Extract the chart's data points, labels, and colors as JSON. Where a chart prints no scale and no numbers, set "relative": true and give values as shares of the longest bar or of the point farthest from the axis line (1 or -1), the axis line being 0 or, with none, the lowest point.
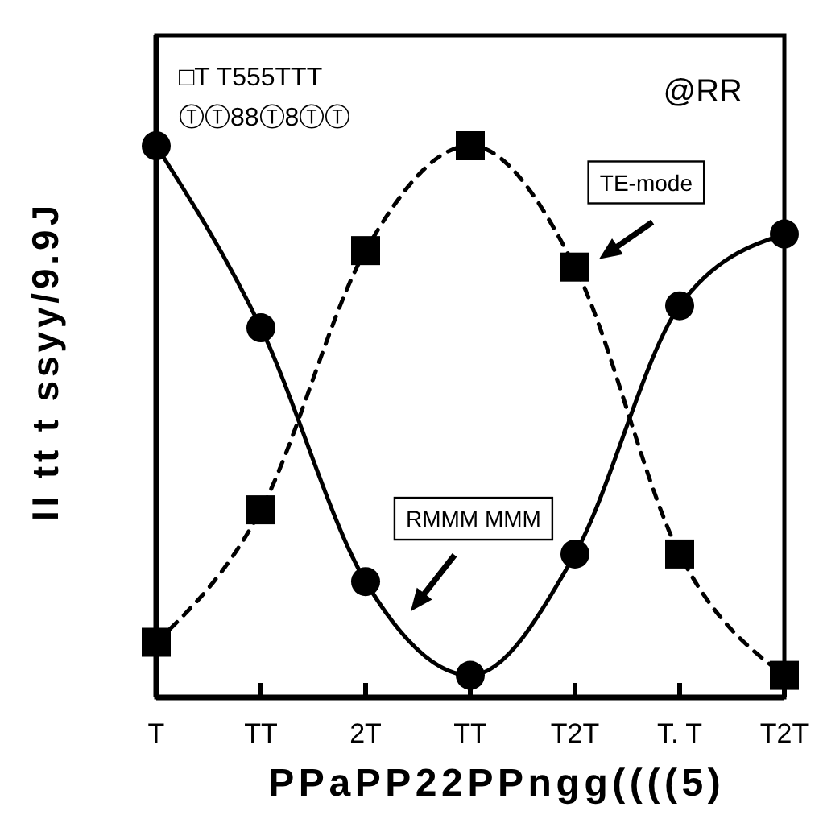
{
  "chart_data": {
    "type": "line",
    "relative": true,
    "categories": [
      "T",
      "TT",
      "2T",
      "TT",
      "T2T",
      "T. T",
      "T2T"
    ],
    "series": [
      {
        "color": "#000000",
        "values": [
          1.0,
          0.67,
          0.21,
          0.04,
          0.26,
          0.71,
          0.84
        ],
        "marker": "circle",
        "line_style": "solid"
      },
      {
        "color": "#000000",
        "values": [
          0.1,
          0.34,
          0.81,
          1.0,
          0.78,
          0.26,
          0.04
        ],
        "marker": "square",
        "line_style": "dashed"
      }
    ],
    "xlabel": "PPaPP22PPngg((((5)",
    "ylabel": "II tt t ssyy/9.9J",
    "annotations": [
      "□T T555TTT",
      "ⓉⓉ88Ⓣ8ⓉⓉ",
      "@RR",
      "TE-mode",
      "RMMM MMM"
    ]
  }
}
